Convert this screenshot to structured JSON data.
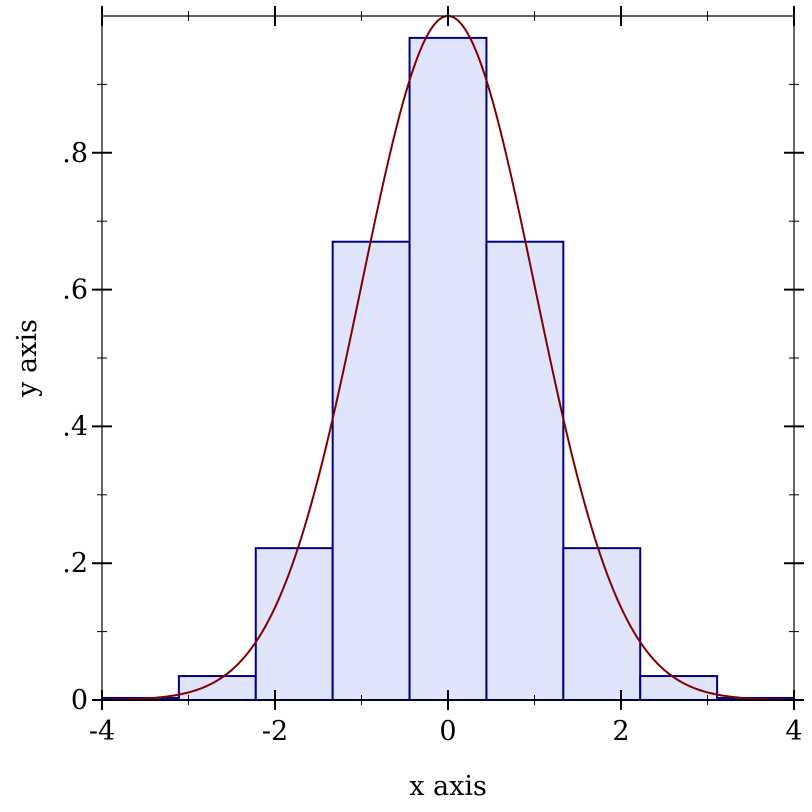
{
  "chart_data": {
    "type": "bar",
    "xlabel": "x axis",
    "ylabel": "y axis",
    "xlim": [
      -4,
      4
    ],
    "ylim": [
      0,
      1.0
    ],
    "x_ticks": [
      -4,
      -2,
      0,
      2,
      4
    ],
    "x_tick_labels": [
      "-4",
      "-2",
      "0",
      "2",
      "4"
    ],
    "y_ticks": [
      0,
      0.2,
      0.4,
      0.6,
      0.8
    ],
    "y_tick_labels": [
      "0",
      ".2",
      ".4",
      ".6",
      ".8"
    ],
    "histogram": {
      "bin_edges": [
        -4.0,
        -3.1111,
        -2.2222,
        -1.3333,
        -0.4444,
        0.4444,
        1.3333,
        2.2222,
        3.1111,
        4.0
      ],
      "values": [
        0.003,
        0.035,
        0.222,
        0.67,
        0.968,
        0.67,
        0.222,
        0.035,
        0.003
      ]
    },
    "curve": {
      "function": "exp(-x^2/2)",
      "x": [
        -4,
        -3.5,
        -3,
        -2.5,
        -2,
        -1.5,
        -1,
        -0.5,
        0,
        0.5,
        1,
        1.5,
        2,
        2.5,
        3,
        3.5,
        4
      ],
      "y": [
        0.0003,
        0.0022,
        0.0111,
        0.0439,
        0.1353,
        0.3247,
        0.6065,
        0.8825,
        1.0,
        0.8825,
        0.6065,
        0.3247,
        0.1353,
        0.0439,
        0.0111,
        0.0022,
        0.0003
      ]
    },
    "colors": {
      "bar_fill": "#e0e4fa",
      "bar_stroke": "#000080",
      "curve": "#800000",
      "axes": "#000000"
    },
    "grid": false,
    "frame": "box"
  }
}
